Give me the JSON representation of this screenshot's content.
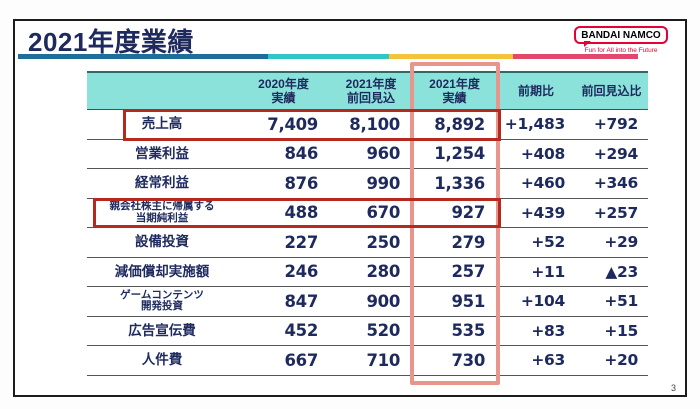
{
  "slide": {
    "title": "2021年度業績",
    "page_number": "3"
  },
  "logo": {
    "wordmark": "BANDAI NAMCO",
    "tagline": "Fun for All into the Future"
  },
  "colors": {
    "title_text": "#1e2a5e",
    "table_text": "#1e2a5e",
    "header_bg": "#8ae2da",
    "highlight_red_border": "#b5291f",
    "highlight_salmon_border": "#ea958c",
    "title_bar_blue": "#1d6e99",
    "title_bar_cyan": "#30c6c6",
    "title_bar_yellow": "#f3c33c",
    "title_bar_pink": "#e0486e",
    "logo_red": "#e50038"
  },
  "table": {
    "headers": [
      {
        "line1": "2020年度",
        "line2": "実績"
      },
      {
        "line1": "2021年度",
        "line2": "前回見込"
      },
      {
        "line1": "2021年度",
        "line2": "実績"
      },
      {
        "line1": "前期比",
        "line2": ""
      },
      {
        "line1": "前回見込比",
        "line2": ""
      }
    ],
    "rows": [
      {
        "label1": "売上高",
        "label2": "",
        "fy2020": "7,409",
        "fy2021_forecast": "8,100",
        "fy2021": "8,892",
        "yoy": "+1,483",
        "vs_forecast": "+792"
      },
      {
        "label1": "営業利益",
        "label2": "",
        "fy2020": "846",
        "fy2021_forecast": "960",
        "fy2021": "1,254",
        "yoy": "+408",
        "vs_forecast": "+294"
      },
      {
        "label1": "経常利益",
        "label2": "",
        "fy2020": "876",
        "fy2021_forecast": "990",
        "fy2021": "1,336",
        "yoy": "+460",
        "vs_forecast": "+346"
      },
      {
        "label1": "親会社株主に帰属する",
        "label2": "当期純利益",
        "fy2020": "488",
        "fy2021_forecast": "670",
        "fy2021": "927",
        "yoy": "+439",
        "vs_forecast": "+257"
      },
      {
        "label1": "設備投資",
        "label2": "",
        "fy2020": "227",
        "fy2021_forecast": "250",
        "fy2021": "279",
        "yoy": "+52",
        "vs_forecast": "+29"
      },
      {
        "label1": "減価償却実施額",
        "label2": "",
        "fy2020": "246",
        "fy2021_forecast": "280",
        "fy2021": "257",
        "yoy": "+11",
        "vs_forecast": "▲23"
      },
      {
        "label1": "ゲームコンテンツ",
        "label2": "開発投資",
        "fy2020": "847",
        "fy2021_forecast": "900",
        "fy2021": "951",
        "yoy": "+104",
        "vs_forecast": "+51"
      },
      {
        "label1": "広告宣伝費",
        "label2": "",
        "fy2020": "452",
        "fy2021_forecast": "520",
        "fy2021": "535",
        "yoy": "+83",
        "vs_forecast": "+15"
      },
      {
        "label1": "人件費",
        "label2": "",
        "fy2020": "667",
        "fy2021_forecast": "710",
        "fy2021": "730",
        "yoy": "+63",
        "vs_forecast": "+20"
      }
    ]
  }
}
